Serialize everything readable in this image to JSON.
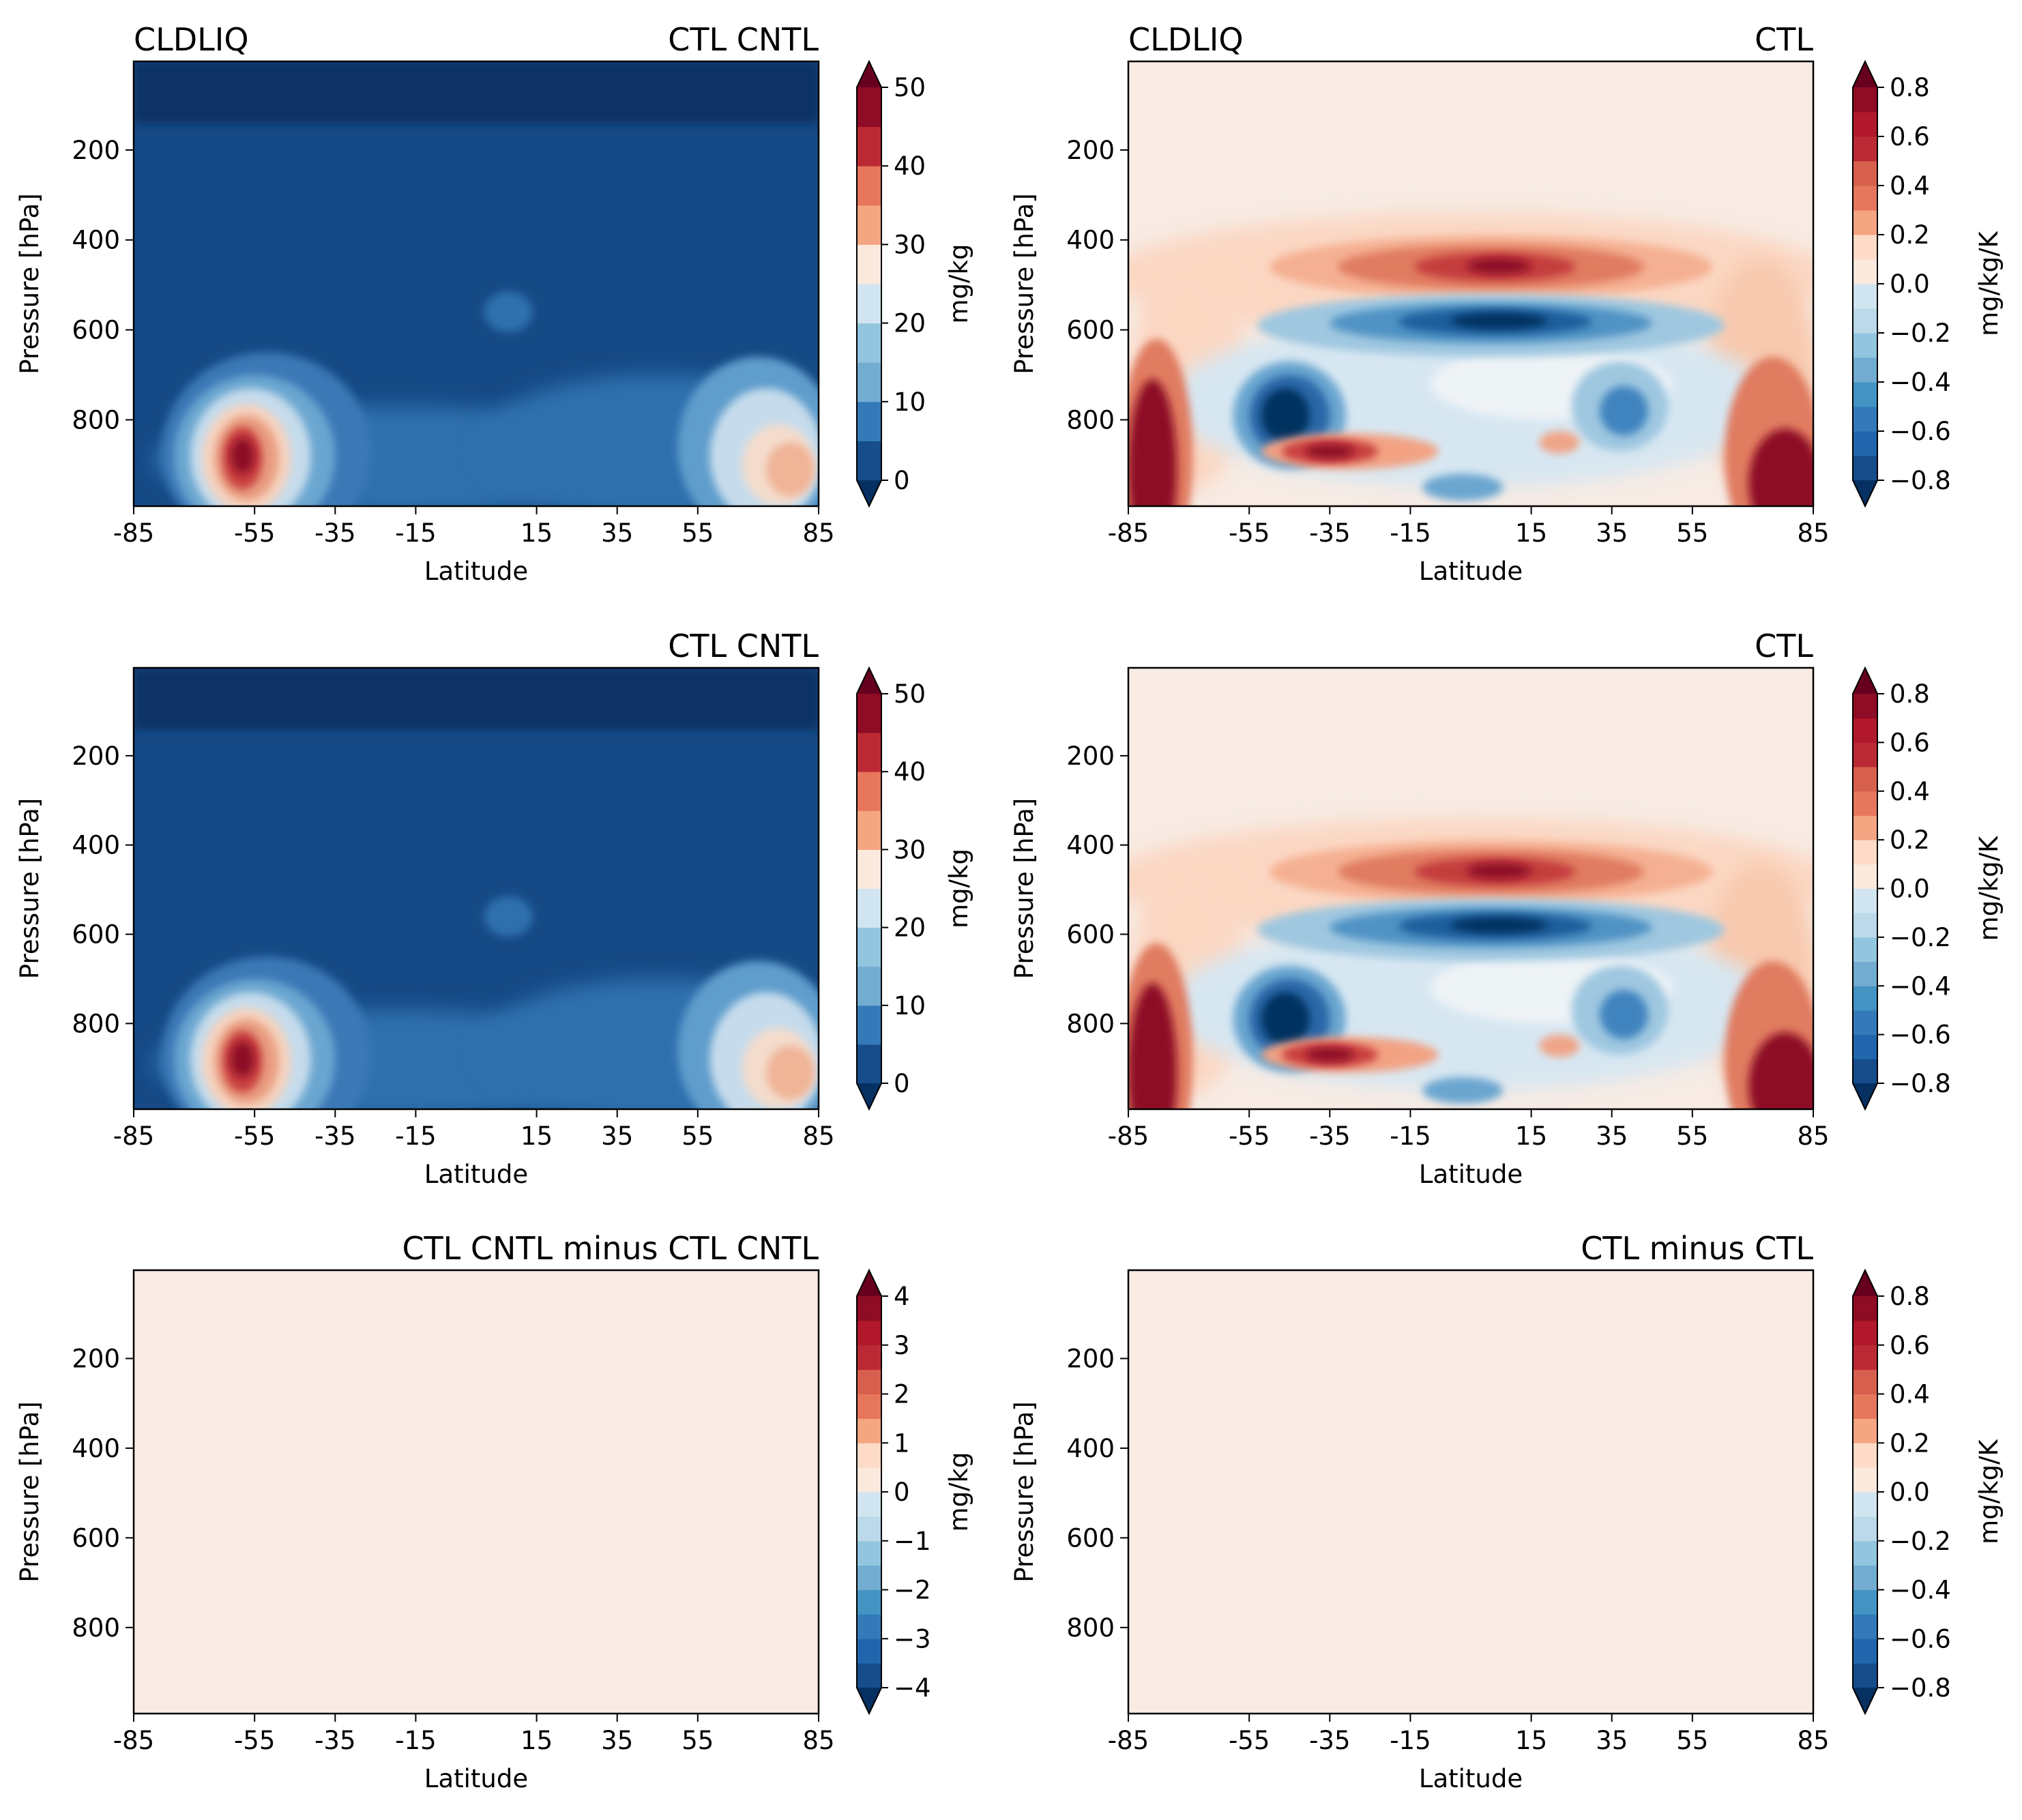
{
  "chart_data": [
    {
      "type": "contourf",
      "panel": "top-left",
      "variable": "CLDLIQ",
      "title_left": "CLDLIQ",
      "title_right": "CTL CNTL",
      "xlabel": "Latitude",
      "ylabel": "Pressure [hPa]",
      "x_ticks": [
        "-85",
        "-55",
        "-35",
        "-15",
        "15",
        "35",
        "55",
        "85"
      ],
      "y_ticks": [
        "200",
        "400",
        "600",
        "800"
      ],
      "xlim": [
        -85,
        85
      ],
      "ylim": [
        992,
        3
      ],
      "colorbar": {
        "label": "mg/kg",
        "ticks": [
          "0",
          "10",
          "20",
          "30",
          "40",
          "50"
        ],
        "levels": [
          0,
          5,
          10,
          15,
          20,
          25,
          30,
          35,
          40,
          45,
          50
        ],
        "extend": "both",
        "colormap": "RdBu_r"
      },
      "features": [
        {
          "description": "southern midlatitude maximum",
          "lat": -58,
          "p": 880,
          "value": 48
        },
        {
          "description": "northern high-latitude maximum",
          "lat": 75,
          "p": 900,
          "value": 32
        },
        {
          "description": "upper troposphere minimum",
          "p_range": [
            3,
            150
          ],
          "value": 0
        }
      ]
    },
    {
      "type": "contourf",
      "panel": "top-right",
      "variable": "CLDLIQ",
      "title_left": "CLDLIQ",
      "title_right": "CTL",
      "xlabel": "Latitude",
      "ylabel": "Pressure [hPa]",
      "x_ticks": [
        "-85",
        "-55",
        "-35",
        "-15",
        "15",
        "35",
        "55",
        "85"
      ],
      "y_ticks": [
        "200",
        "400",
        "600",
        "800"
      ],
      "xlim": [
        -85,
        85
      ],
      "ylim": [
        992,
        3
      ],
      "colorbar": {
        "label": "mg/kg/K",
        "ticks": [
          "0.8",
          "0.6",
          "0.4",
          "0.2",
          "0.0",
          "−0.2",
          "−0.4",
          "−0.6",
          "−0.8"
        ],
        "levels": [
          -0.8,
          -0.7,
          -0.6,
          -0.5,
          -0.4,
          -0.3,
          -0.2,
          -0.1,
          0.0,
          0.1,
          0.2,
          0.3,
          0.4,
          0.5,
          0.6,
          0.7,
          0.8
        ],
        "extend": "both",
        "colormap": "RdBu_r"
      },
      "features": [
        {
          "description": "mid-level positive band",
          "lat": 5,
          "p": 460,
          "value": 0.7
        },
        {
          "description": "negative band below",
          "lat": 5,
          "p": 580,
          "value": -0.8
        },
        {
          "description": "SH polar positive",
          "lat": -78,
          "p": 900,
          "value": 0.8
        },
        {
          "description": "NH polar positive",
          "lat": 78,
          "p": 930,
          "value": 0.8
        },
        {
          "description": "SH midlatitude negative",
          "lat": -45,
          "p": 780,
          "value": -0.8
        }
      ]
    },
    {
      "type": "contourf",
      "panel": "middle-left",
      "variable": "CLDLIQ",
      "title_right": "CTL CNTL",
      "xlabel": "Latitude",
      "ylabel": "Pressure [hPa]",
      "x_ticks": [
        "-85",
        "-55",
        "-35",
        "-15",
        "15",
        "35",
        "55",
        "85"
      ],
      "y_ticks": [
        "200",
        "400",
        "600",
        "800"
      ],
      "xlim": [
        -85,
        85
      ],
      "ylim": [
        992,
        3
      ],
      "colorbar": {
        "label": "mg/kg",
        "ticks": [
          "0",
          "10",
          "20",
          "30",
          "40",
          "50"
        ],
        "levels": [
          0,
          5,
          10,
          15,
          20,
          25,
          30,
          35,
          40,
          45,
          50
        ],
        "extend": "both",
        "colormap": "RdBu_r"
      }
    },
    {
      "type": "contourf",
      "panel": "middle-right",
      "variable": "CLDLIQ",
      "title_right": "CTL",
      "xlabel": "Latitude",
      "ylabel": "Pressure [hPa]",
      "x_ticks": [
        "-85",
        "-55",
        "-35",
        "-15",
        "15",
        "35",
        "55",
        "85"
      ],
      "y_ticks": [
        "200",
        "400",
        "600",
        "800"
      ],
      "xlim": [
        -85,
        85
      ],
      "ylim": [
        992,
        3
      ],
      "colorbar": {
        "label": "mg/kg/K",
        "ticks": [
          "0.8",
          "0.6",
          "0.4",
          "0.2",
          "0.0",
          "−0.2",
          "−0.4",
          "−0.6",
          "−0.8"
        ],
        "levels": [
          -0.8,
          -0.7,
          -0.6,
          -0.5,
          -0.4,
          -0.3,
          -0.2,
          -0.1,
          0.0,
          0.1,
          0.2,
          0.3,
          0.4,
          0.5,
          0.6,
          0.7,
          0.8
        ],
        "extend": "both",
        "colormap": "RdBu_r"
      }
    },
    {
      "type": "contourf",
      "panel": "bottom-left",
      "variable": "CLDLIQ",
      "title_right": "CTL CNTL minus CTL CNTL",
      "xlabel": "Latitude",
      "ylabel": "Pressure [hPa]",
      "x_ticks": [
        "-85",
        "-55",
        "-35",
        "-15",
        "15",
        "35",
        "55",
        "85"
      ],
      "y_ticks": [
        "200",
        "400",
        "600",
        "800"
      ],
      "xlim": [
        -85,
        85
      ],
      "ylim": [
        992,
        3
      ],
      "colorbar": {
        "label": "mg/kg",
        "ticks": [
          "4",
          "3",
          "2",
          "1",
          "0",
          "−1",
          "−2",
          "−3",
          "−4"
        ],
        "levels": [
          -4,
          -3.5,
          -3,
          -2.5,
          -2,
          -1.5,
          -1,
          -0.5,
          0,
          0.5,
          1,
          1.5,
          2,
          2.5,
          3,
          3.5,
          4
        ],
        "extend": "both",
        "colormap": "RdBu_r"
      },
      "field_value": 0
    },
    {
      "type": "contourf",
      "panel": "bottom-right",
      "variable": "CLDLIQ",
      "title_right": "CTL minus CTL",
      "xlabel": "Latitude",
      "ylabel": "Pressure [hPa]",
      "x_ticks": [
        "-85",
        "-55",
        "-35",
        "-15",
        "15",
        "35",
        "55",
        "85"
      ],
      "y_ticks": [
        "200",
        "400",
        "600",
        "800"
      ],
      "xlim": [
        -85,
        85
      ],
      "ylim": [
        992,
        3
      ],
      "colorbar": {
        "label": "mg/kg/K",
        "ticks": [
          "0.8",
          "0.6",
          "0.4",
          "0.2",
          "0.0",
          "−0.2",
          "−0.4",
          "−0.6",
          "−0.8"
        ],
        "levels": [
          -0.8,
          -0.7,
          -0.6,
          -0.5,
          -0.4,
          -0.3,
          -0.2,
          -0.1,
          0.0,
          0.1,
          0.2,
          0.3,
          0.4,
          0.5,
          0.6,
          0.7,
          0.8
        ],
        "extend": "both",
        "colormap": "RdBu_r"
      },
      "field_value": 0
    }
  ],
  "colors": {
    "zero_fill": "#f7ebe4",
    "diverging": [
      "#053061",
      "#164d8a",
      "#2166ac",
      "#347ab8",
      "#4393c3",
      "#72acd1",
      "#92c5de",
      "#bcd9e9",
      "#d1e5f0",
      "#eaf1f5",
      "#fbe9de",
      "#fddbc7",
      "#f4a582",
      "#e6765c",
      "#d6604d",
      "#bb2a34",
      "#b2182b",
      "#8e0c25",
      "#67001f"
    ]
  }
}
